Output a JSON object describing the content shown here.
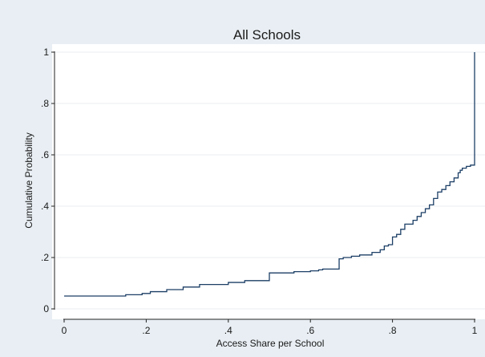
{
  "chart_data": {
    "type": "line",
    "title": "All Schools",
    "xlabel": "Access Share per School",
    "ylabel": "Cumulative Probability",
    "xlim": [
      0,
      1
    ],
    "ylim": [
      0,
      1
    ],
    "x_ticks": [
      0,
      0.2,
      0.4,
      0.6,
      0.8,
      1
    ],
    "x_tick_labels": [
      "0",
      ".2",
      ".4",
      ".6",
      ".8",
      "1"
    ],
    "y_ticks": [
      0,
      0.2,
      0.4,
      0.6,
      0.8,
      1
    ],
    "y_tick_labels": [
      "0",
      ".2",
      ".4",
      ".6",
      ".8",
      "1"
    ],
    "grid": true,
    "step": true,
    "series": [
      {
        "color": "#1c3f66",
        "points": [
          [
            0.0,
            0.05
          ],
          [
            0.14,
            0.05
          ],
          [
            0.15,
            0.055
          ],
          [
            0.19,
            0.06
          ],
          [
            0.2,
            0.06
          ],
          [
            0.21,
            0.067
          ],
          [
            0.25,
            0.075
          ],
          [
            0.29,
            0.085
          ],
          [
            0.33,
            0.095
          ],
          [
            0.4,
            0.103
          ],
          [
            0.44,
            0.11
          ],
          [
            0.5,
            0.14
          ],
          [
            0.56,
            0.145
          ],
          [
            0.6,
            0.148
          ],
          [
            0.62,
            0.152
          ],
          [
            0.63,
            0.155
          ],
          [
            0.67,
            0.195
          ],
          [
            0.68,
            0.2
          ],
          [
            0.7,
            0.205
          ],
          [
            0.72,
            0.21
          ],
          [
            0.75,
            0.22
          ],
          [
            0.77,
            0.23
          ],
          [
            0.78,
            0.245
          ],
          [
            0.79,
            0.25
          ],
          [
            0.8,
            0.28
          ],
          [
            0.81,
            0.29
          ],
          [
            0.82,
            0.31
          ],
          [
            0.83,
            0.33
          ],
          [
            0.85,
            0.345
          ],
          [
            0.86,
            0.36
          ],
          [
            0.87,
            0.375
          ],
          [
            0.88,
            0.39
          ],
          [
            0.89,
            0.405
          ],
          [
            0.9,
            0.43
          ],
          [
            0.91,
            0.455
          ],
          [
            0.92,
            0.465
          ],
          [
            0.93,
            0.48
          ],
          [
            0.94,
            0.495
          ],
          [
            0.95,
            0.51
          ],
          [
            0.96,
            0.53
          ],
          [
            0.965,
            0.54
          ],
          [
            0.97,
            0.548
          ],
          [
            0.98,
            0.555
          ],
          [
            0.99,
            0.56
          ],
          [
            1.0,
            0.56
          ],
          [
            1.0,
            1.0
          ]
        ]
      }
    ],
    "colors": {
      "background": "#e8eef3",
      "plot_area": "#ffffff",
      "grid": "#e9eef2",
      "line": "#1c3f66"
    }
  }
}
